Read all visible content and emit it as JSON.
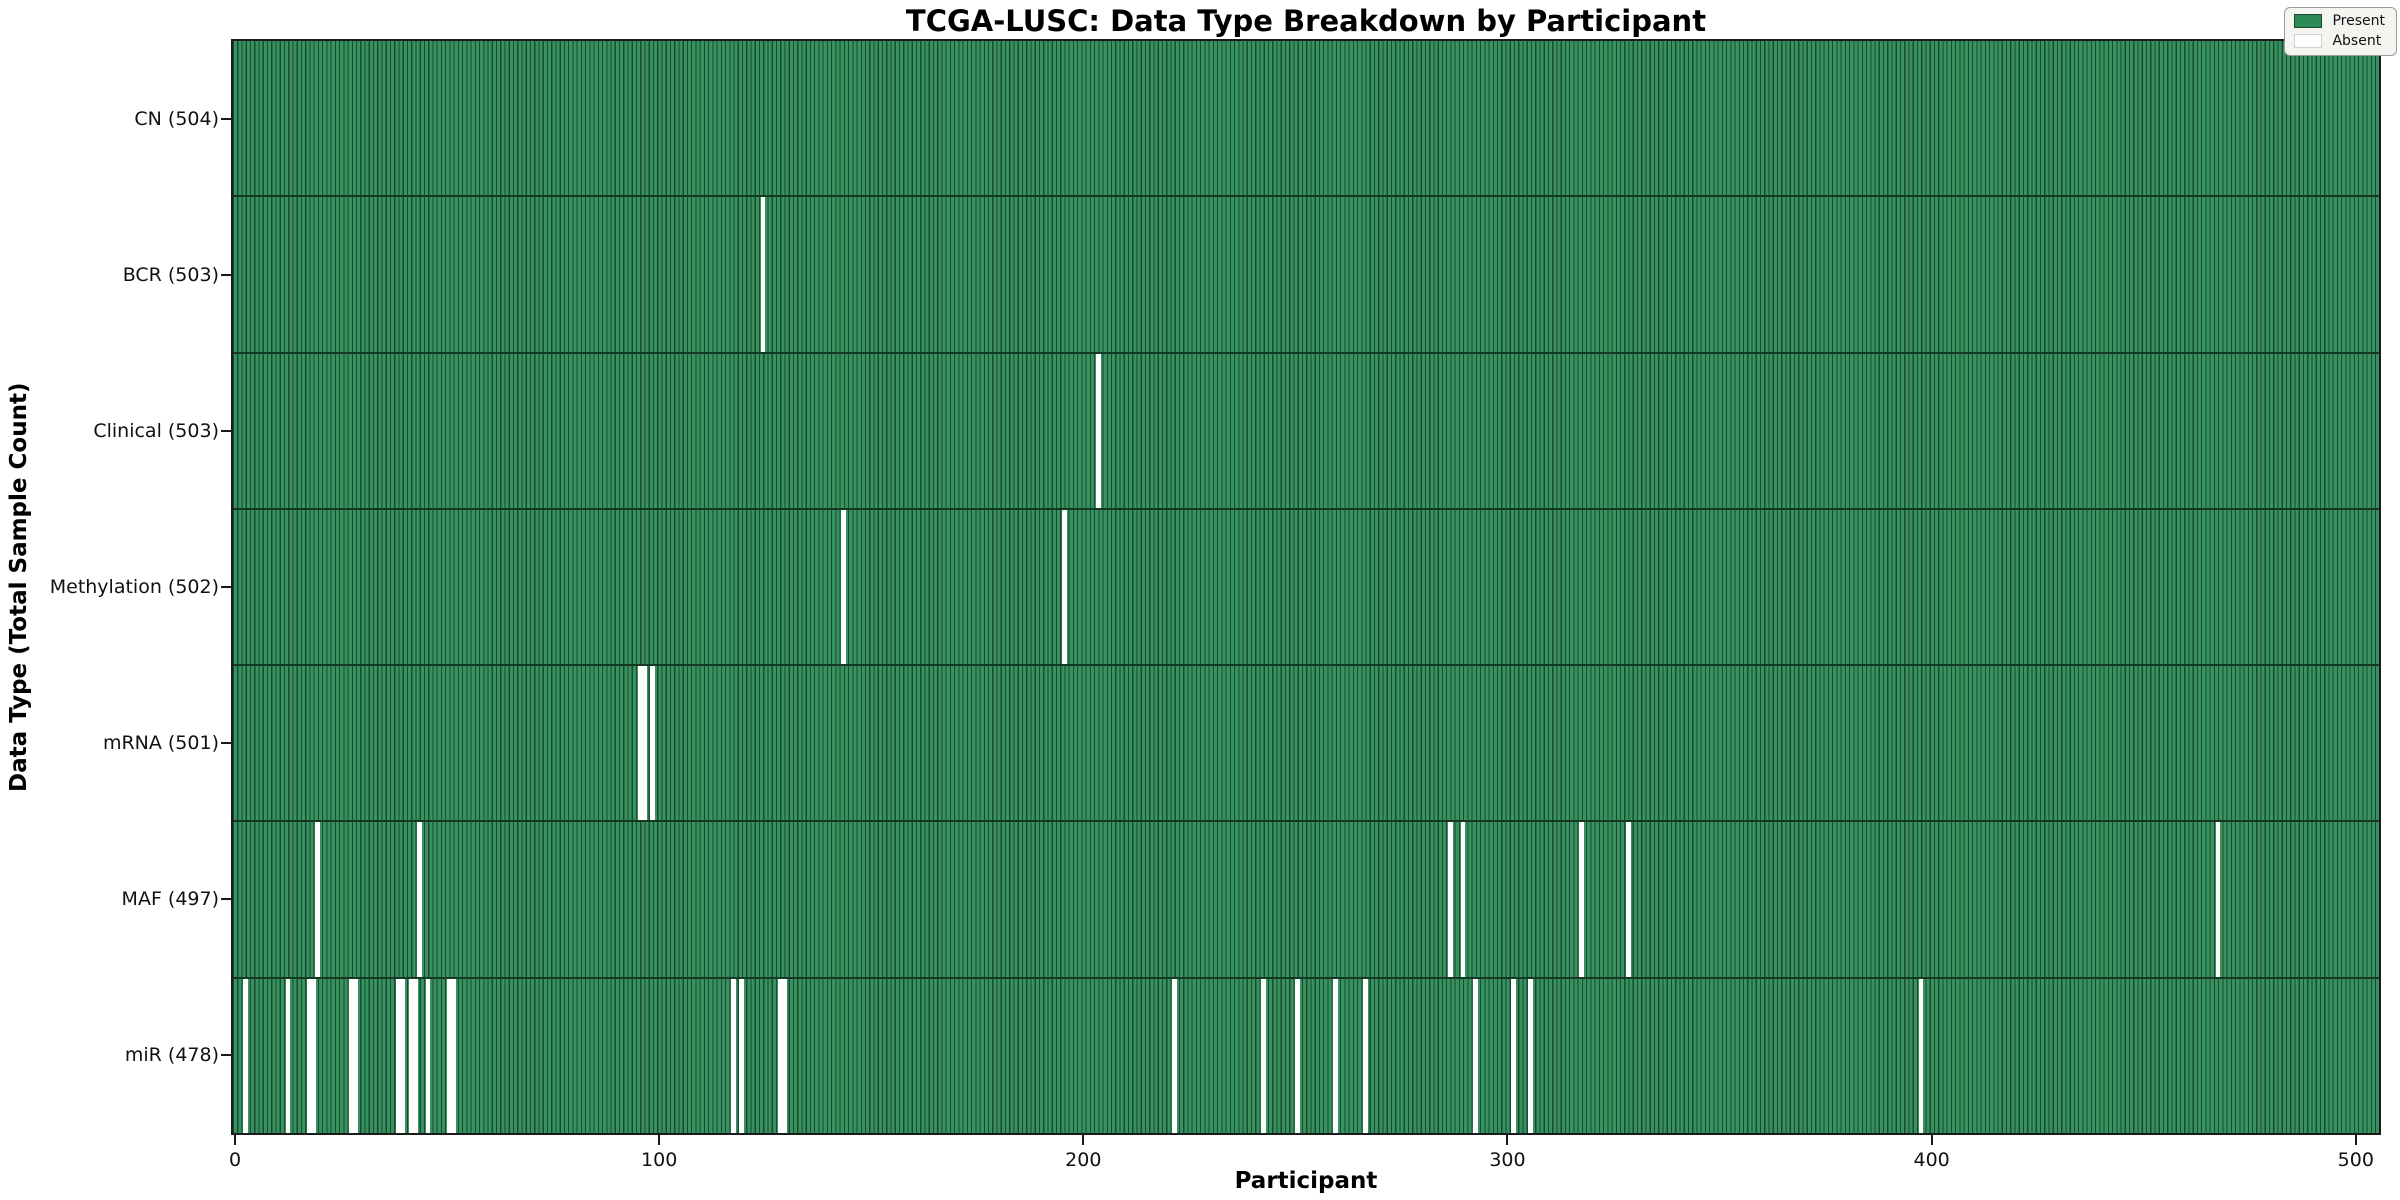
{
  "title": "TCGA-LUSC: Data Type Breakdown by Participant",
  "xlabel": "Participant",
  "ylabel": "Data Type (Total Sample Count)",
  "legend": {
    "present_label": "Present",
    "absent_label": "Absent"
  },
  "colors": {
    "present": "#2e8b57",
    "absent": "#ffffff",
    "bar_fill": "#37925f",
    "bar_edge": "#1a4b2f",
    "row_divider": "#143823",
    "plot_border": "#1b1b1b",
    "legend_bg": "#f4f4f1",
    "legend_border": "#9a9a9a",
    "present_swatch_border": "#1a4b2f",
    "absent_swatch_border": "#d0d0d0"
  },
  "chart_data": {
    "type": "heatmap",
    "title": "TCGA-LUSC: Data Type Breakdown by Participant",
    "xlabel": "Participant",
    "ylabel": "Data Type (Total Sample Count)",
    "legend_entries": [
      "Present",
      "Absent"
    ],
    "legend_position": "upper right",
    "grid": false,
    "n_participants": 504,
    "xlim": [
      0,
      505
    ],
    "x_ticks": [
      0,
      100,
      200,
      300,
      400,
      500
    ],
    "rows": [
      {
        "label": "CN (504)",
        "data_type": "CN",
        "total_samples": 504,
        "absent_count": 0,
        "absent_participants": []
      },
      {
        "label": "BCR (503)",
        "data_type": "BCR",
        "total_samples": 503,
        "absent_count": 1,
        "absent_participants": [
          125
        ]
      },
      {
        "label": "Clinical (503)",
        "data_type": "Clinical",
        "total_samples": 503,
        "absent_count": 1,
        "absent_participants": [
          204
        ]
      },
      {
        "label": "Methylation (502)",
        "data_type": "Methylation",
        "total_samples": 502,
        "absent_count": 2,
        "absent_participants": [
          144,
          196
        ]
      },
      {
        "label": "mRNA (501)",
        "data_type": "mRNA",
        "total_samples": 501,
        "absent_count": 3,
        "absent_participants": [
          96,
          97,
          99
        ]
      },
      {
        "label": "MAF (497)",
        "data_type": "MAF",
        "total_samples": 497,
        "absent_count": 7,
        "absent_participants": [
          20,
          44,
          287,
          290,
          318,
          329,
          468
        ]
      },
      {
        "label": "miR (478)",
        "data_type": "miR",
        "total_samples": 478,
        "absent_count": 26,
        "absent_participants": [
          3,
          13,
          18,
          19,
          28,
          29,
          39,
          40,
          42,
          43,
          46,
          51,
          52,
          118,
          120,
          129,
          130,
          222,
          243,
          251,
          260,
          267,
          293,
          302,
          306,
          398
        ]
      }
    ]
  }
}
